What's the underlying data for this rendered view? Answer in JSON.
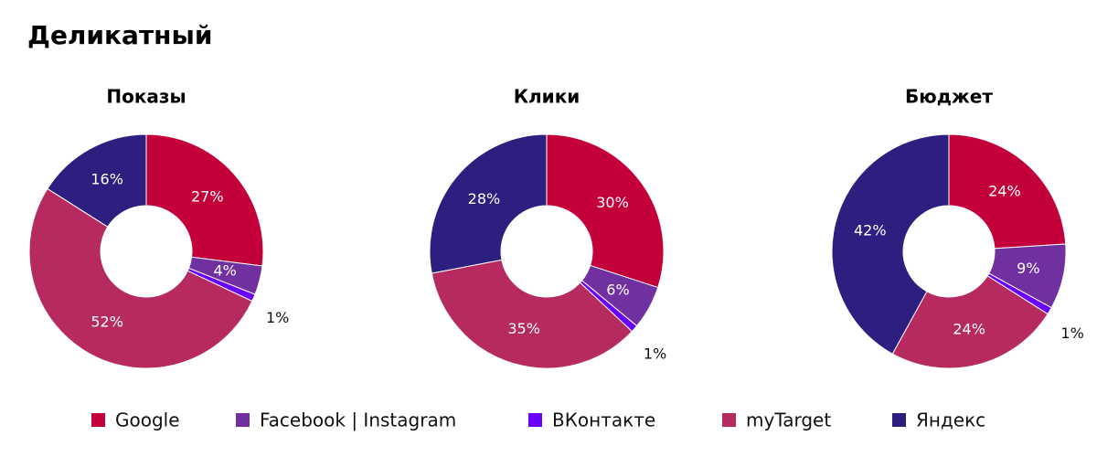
{
  "title": "Деликатный",
  "chart_data": [
    {
      "type": "pie",
      "title": "Показы",
      "categories": [
        "Google",
        "Facebook | Instagram",
        "ВКонтакте",
        "myTarget",
        "Яндекс"
      ],
      "colors": [
        "#c3003a",
        "#7030a0",
        "#6a00ff",
        "#b72a5f",
        "#2c1f80"
      ],
      "values": [
        27,
        4,
        1,
        52,
        16
      ],
      "value_labels": [
        "27%",
        "4%",
        "1%",
        "52%",
        "16%"
      ]
    },
    {
      "type": "pie",
      "title": "Клики",
      "categories": [
        "Google",
        "Facebook | Instagram",
        "ВКонтакте",
        "myTarget",
        "Яндекс"
      ],
      "colors": [
        "#c3003a",
        "#7030a0",
        "#6a00ff",
        "#b72a5f",
        "#2c1f80"
      ],
      "values": [
        30,
        6,
        1,
        35,
        28
      ],
      "value_labels": [
        "30%",
        "6%",
        "1%",
        "35%",
        "28%"
      ]
    },
    {
      "type": "pie",
      "title": "Бюджет",
      "categories": [
        "Google",
        "Facebook | Instagram",
        "ВКонтакте",
        "myTarget",
        "Яндекс"
      ],
      "colors": [
        "#c3003a",
        "#7030a0",
        "#6a00ff",
        "#b72a5f",
        "#2c1f80"
      ],
      "values": [
        24,
        9,
        1,
        24,
        42
      ],
      "value_labels": [
        "24%",
        "9%",
        "1%",
        "24%",
        "42%"
      ]
    }
  ]
}
